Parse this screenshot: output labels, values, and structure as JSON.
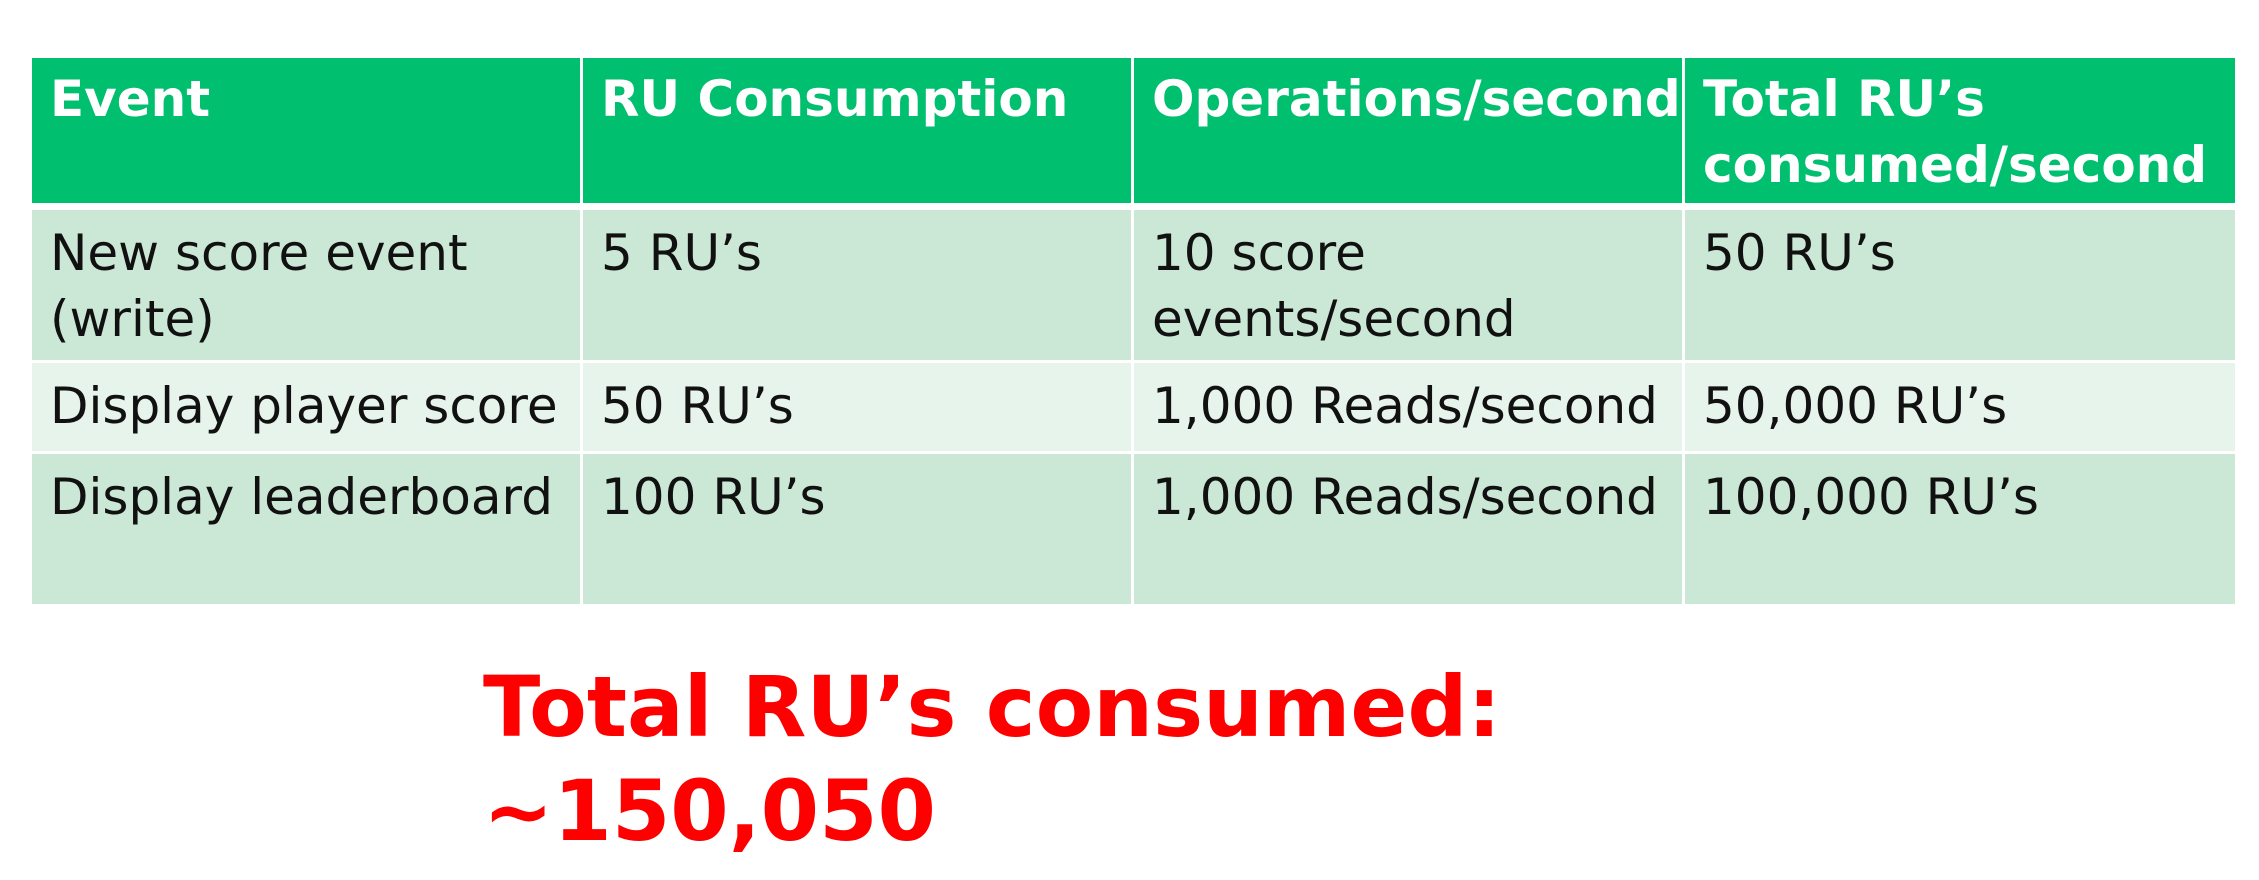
{
  "table": {
    "headers": [
      "Event",
      "RU Consumption",
      "Operations/second",
      "Total RU’s consumed/second"
    ],
    "rows": [
      [
        "New score event (write)",
        "5 RU’s",
        "10 score events/second",
        "50 RU’s"
      ],
      [
        "Display player score",
        "50 RU’s",
        "1,000 Reads/second",
        "50,000 RU’s"
      ],
      [
        "Display leaderboard",
        "100 RU’s",
        "1,000 Reads/second",
        "100,000 RU’s"
      ]
    ]
  },
  "total": {
    "label": "Total RU’s consumed:",
    "value": "~150,050"
  },
  "colors": {
    "header_bg": "#00bf6f",
    "row_dark": "#cbe8d6",
    "row_light": "#e7f4ec",
    "total_text": "#ff0000"
  }
}
